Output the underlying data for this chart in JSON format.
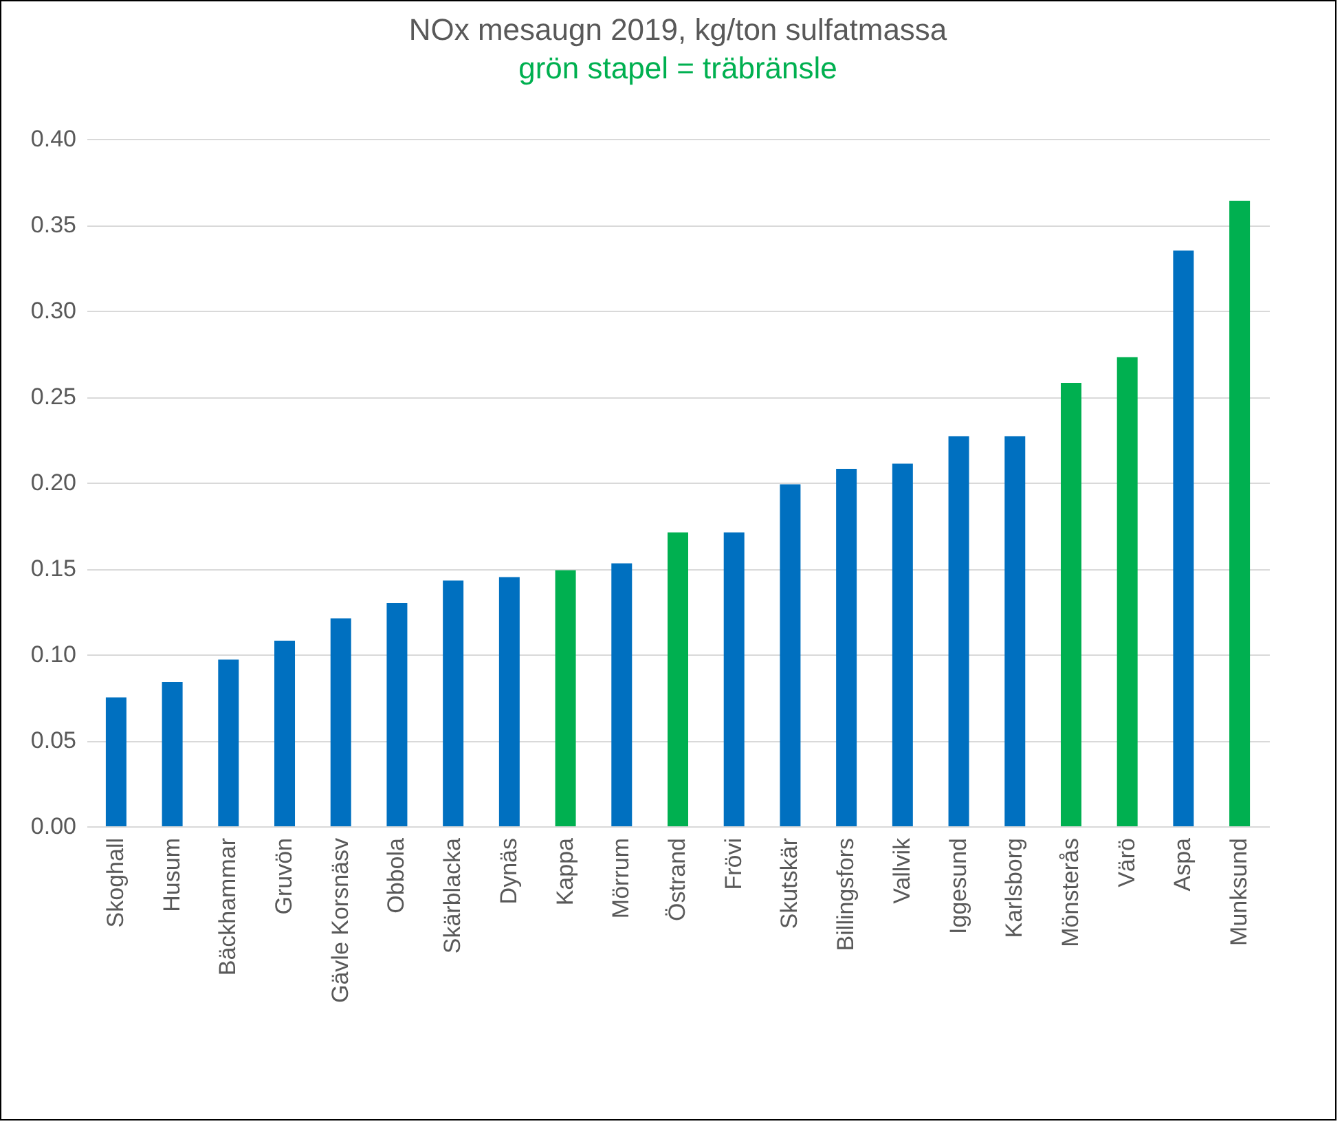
{
  "chart_data": {
    "type": "bar",
    "title": "NOx mesaugn 2019, kg/ton sulfatmassa",
    "subtitle": "grön stapel = träbränsle",
    "categories": [
      "Skoghall",
      "Husum",
      "Bäckhammar",
      "Gruvön",
      "Gävle Korsnäsv",
      "Obbola",
      "Skärblacka",
      "Dynäs",
      "Kappa",
      "Mörrum",
      "Östrand",
      "Frövi",
      "Skutskär",
      "Billingsfors",
      "Vallvik",
      "Iggesund",
      "Karlsborg",
      "Mönsterås",
      "Värö",
      "Aspa",
      "Munksund"
    ],
    "values": [
      0.075,
      0.084,
      0.097,
      0.108,
      0.121,
      0.13,
      0.143,
      0.145,
      0.149,
      0.153,
      0.171,
      0.171,
      0.199,
      0.208,
      0.211,
      0.227,
      0.227,
      0.258,
      0.273,
      0.335,
      0.364
    ],
    "colors": [
      "#0070c0",
      "#0070c0",
      "#0070c0",
      "#0070c0",
      "#0070c0",
      "#0070c0",
      "#0070c0",
      "#0070c0",
      "#00b050",
      "#0070c0",
      "#00b050",
      "#0070c0",
      "#0070c0",
      "#0070c0",
      "#0070c0",
      "#0070c0",
      "#0070c0",
      "#00b050",
      "#00b050",
      "#0070c0",
      "#00b050"
    ],
    "ylim": [
      0,
      0.4
    ],
    "yticks": [
      {
        "value": 0,
        "label": "0.00"
      },
      {
        "value": 0.05,
        "label": "0.05"
      },
      {
        "value": 0.1,
        "label": "0.10"
      },
      {
        "value": 0.15,
        "label": "0.15"
      },
      {
        "value": 0.2,
        "label": "0.20"
      },
      {
        "value": 0.25,
        "label": "0.25"
      },
      {
        "value": 0.3,
        "label": "0.30"
      },
      {
        "value": 0.35,
        "label": "0.35"
      },
      {
        "value": 0.4,
        "label": "0.40"
      }
    ],
    "grid": "y"
  }
}
